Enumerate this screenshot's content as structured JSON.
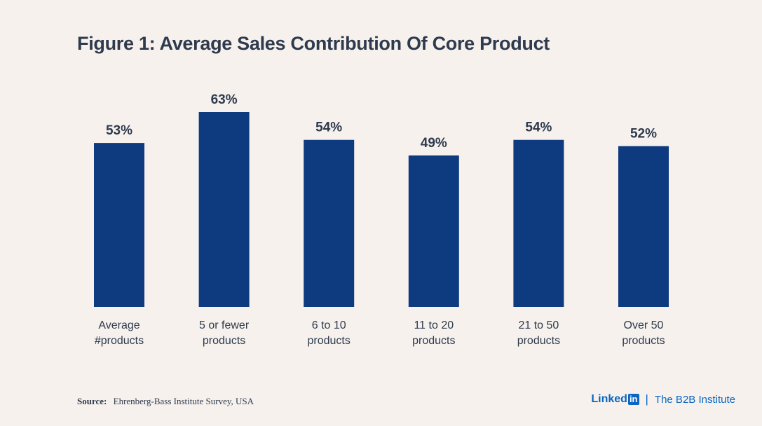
{
  "chart_data": {
    "type": "bar",
    "title": "Figure 1: Average Sales Contribution Of Core Product",
    "categories": [
      [
        "Average",
        "#products"
      ],
      [
        "5 or fewer",
        "products"
      ],
      [
        "6 to 10",
        "products"
      ],
      [
        "11 to 20",
        "products"
      ],
      [
        "21 to 50",
        "products"
      ],
      [
        "Over 50",
        "products"
      ]
    ],
    "values": [
      53,
      63,
      54,
      49,
      54,
      52
    ],
    "data_labels": [
      "53%",
      "63%",
      "54%",
      "49%",
      "54%",
      "52%"
    ],
    "unit": "%",
    "xlabel": "",
    "ylabel": "",
    "ylim": [
      0,
      63
    ],
    "grid": false,
    "bar_color": "#0e3a80"
  },
  "source": {
    "label": "Source:",
    "text": "Ehrenberg-Bass Institute Survey, USA"
  },
  "brand": {
    "linkedin_word": "Linked",
    "linkedin_box": "in",
    "separator": "|",
    "institute": "The B2B Institute"
  },
  "colors": {
    "background": "#f6f1ed",
    "text": "#2e3a4d",
    "accent": "#0a66c2"
  }
}
